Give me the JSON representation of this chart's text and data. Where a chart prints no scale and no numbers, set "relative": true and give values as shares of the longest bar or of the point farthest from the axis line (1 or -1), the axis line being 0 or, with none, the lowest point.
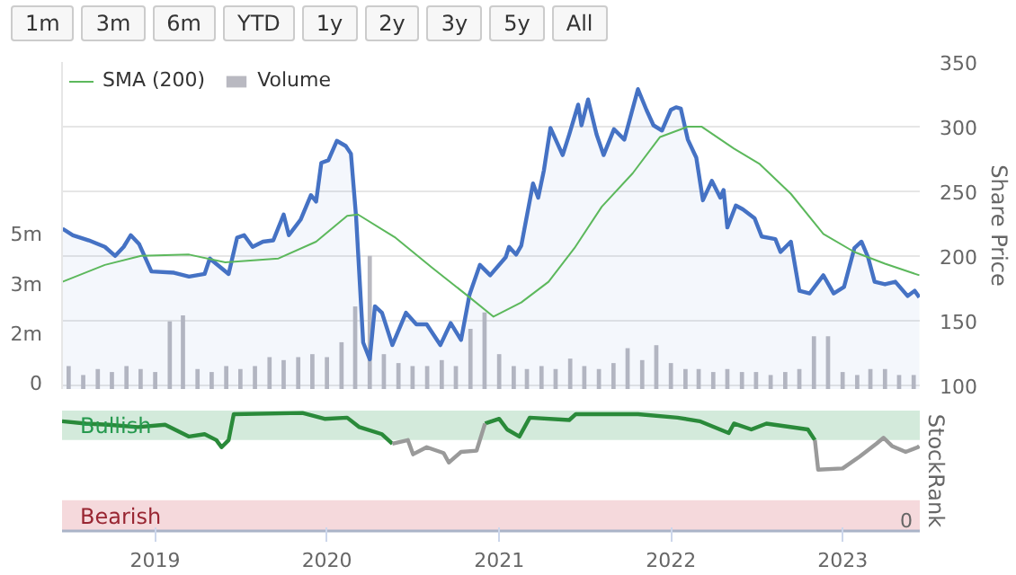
{
  "chart_data": [
    {
      "type": "line",
      "annotations": [
        "1m",
        "3m",
        "6m",
        "YTD",
        "1y",
        "2y",
        "3y",
        "5y",
        "All"
      ],
      "ylabel": "Share Price",
      "xlim": [
        "2018-06-17",
        "2023-06-14"
      ],
      "ylim": [
        97,
        350
      ],
      "yticks": [
        100,
        150,
        200,
        250,
        300,
        350
      ],
      "y2lim": [
        -170000,
        10800000
      ],
      "y2ticks": [
        0,
        {
          "value": 1666667,
          "label": "2m"
        },
        {
          "value": 3333333,
          "label": "3m"
        },
        {
          "value": 5000000,
          "label": "5m"
        }
      ],
      "tick_labels": "y",
      "grid": "y",
      "legend": "top left",
      "series": [
        {
          "type": "bar",
          "name": "Volume",
          "color": "#b9b9c1",
          "axis": "y2",
          "x": [
            "2018-07",
            "2018-08",
            "2018-09",
            "2018-10",
            "2018-11",
            "2018-12",
            "2019-01",
            "2019-02",
            "2019-03",
            "2019-04",
            "2019-05",
            "2019-06",
            "2019-07",
            "2019-08",
            "2019-09",
            "2019-10",
            "2019-11",
            "2019-12",
            "2020-01",
            "2020-02",
            "2020-03",
            "2020-04",
            "2020-05",
            "2020-06",
            "2020-07",
            "2020-08",
            "2020-09",
            "2020-10",
            "2020-11",
            "2020-12",
            "2021-01",
            "2021-02",
            "2021-03",
            "2021-04",
            "2021-05",
            "2021-06",
            "2021-07",
            "2021-08",
            "2021-09",
            "2021-10",
            "2021-11",
            "2021-12",
            "2022-01",
            "2022-02",
            "2022-03",
            "2022-04",
            "2022-05",
            "2022-06",
            "2022-07",
            "2022-08",
            "2022-09",
            "2022-10",
            "2022-11",
            "2022-12",
            "2023-01",
            "2023-02",
            "2023-03",
            "2023-04",
            "2023-05",
            "2023-06"
          ],
          "values": [
            600000,
            300000,
            500000,
            400000,
            600000,
            500000,
            400000,
            2100000,
            2300000,
            500000,
            400000,
            600000,
            500000,
            600000,
            900000,
            800000,
            900000,
            1000000,
            900000,
            1400000,
            2600000,
            4300000,
            1000000,
            700000,
            600000,
            600000,
            800000,
            600000,
            1850000,
            2400000,
            1000000,
            600000,
            500000,
            600000,
            500000,
            850000,
            600000,
            500000,
            700000,
            1200000,
            800000,
            1300000,
            700000,
            500000,
            500000,
            400000,
            500000,
            400000,
            400000,
            300000,
            400000,
            500000,
            1600000,
            1600000,
            400000,
            300000,
            500000,
            500000,
            300000,
            300000
          ]
        },
        {
          "type": "area",
          "color": "#4572c4",
          "x": [
            "2018-06-18",
            "2018-07-10",
            "2018-08-13",
            "2018-09-16",
            "2018-10-08",
            "2018-10-26",
            "2018-11-10",
            "2018-11-28",
            "2018-12-24",
            "2019-02-10",
            "2019-03-14",
            "2019-04-16",
            "2019-04-27",
            "2019-06-06",
            "2019-06-24",
            "2019-07-09",
            "2019-07-27",
            "2019-08-18",
            "2019-09-09",
            "2019-10-01",
            "2019-10-12",
            "2019-11-06",
            "2019-11-28",
            "2019-12-09",
            "2019-12-20",
            "2020-01-04",
            "2020-01-22",
            "2020-02-10",
            "2020-02-21",
            "2020-03-03",
            "2020-03-18",
            "2020-04-01",
            "2020-04-12",
            "2020-04-27",
            "2020-05-19",
            "2020-06-17",
            "2020-07-09",
            "2020-07-31",
            "2020-08-29",
            "2020-09-20",
            "2020-10-12",
            "2020-10-30",
            "2020-11-21",
            "2020-12-13",
            "2021-01-15",
            "2021-01-22",
            "2021-02-06",
            "2021-02-17",
            "2021-03-14",
            "2021-03-25",
            "2021-04-06",
            "2021-04-20",
            "2021-05-16",
            "2021-05-30",
            "2021-06-18",
            "2021-06-25",
            "2021-07-09",
            "2021-07-27",
            "2021-08-11",
            "2021-09-02",
            "2021-09-24",
            "2021-10-23",
            "2021-11-10",
            "2021-11-25",
            "2021-12-13",
            "2022-01-01",
            "2022-01-12",
            "2022-01-22",
            "2022-02-06",
            "2022-02-24",
            "2022-03-10",
            "2022-03-29",
            "2022-04-16",
            "2022-04-23",
            "2022-05-01",
            "2022-05-19",
            "2022-06-03",
            "2022-06-28",
            "2022-07-13",
            "2022-08-11",
            "2022-08-22",
            "2022-09-13",
            "2022-10-01",
            "2022-10-23",
            "2022-11-21",
            "2022-12-13",
            "2023-01-04",
            "2023-01-26",
            "2023-02-10",
            "2023-02-24",
            "2023-03-10",
            "2023-04-01",
            "2023-04-23",
            "2023-05-19",
            "2023-06-03",
            "2023-06-13"
          ],
          "values": [
            221,
            216,
            212,
            207,
            200,
            207,
            216,
            209,
            188,
            187,
            184,
            186,
            198,
            186,
            214,
            216,
            207,
            211,
            212,
            232,
            216,
            228,
            247,
            242,
            272,
            274,
            289,
            285,
            279,
            230,
            133,
            120,
            161,
            156,
            131,
            156,
            147,
            147,
            131,
            148,
            135,
            170,
            193,
            185,
            199,
            207,
            201,
            208,
            256,
            245,
            266,
            299,
            278,
            294,
            317,
            301,
            321,
            294,
            278,
            298,
            290,
            329,
            313,
            301,
            297,
            313,
            315,
            314,
            290,
            276,
            243,
            258,
            245,
            251,
            222,
            239,
            236,
            229,
            215,
            213,
            203,
            211,
            173,
            171,
            185,
            171,
            176,
            206,
            211,
            199,
            180,
            178,
            180,
            169,
            173,
            168
          ]
        },
        {
          "type": "line",
          "name": "SMA (200)",
          "color": "#5cb85c",
          "x": [
            "2018-06-18",
            "2018-09-16",
            "2018-12-02",
            "2019-03-14",
            "2019-05-30",
            "2019-09-20",
            "2019-12-09",
            "2020-02-13",
            "2020-03-07",
            "2020-05-26",
            "2020-08-11",
            "2020-10-30",
            "2020-12-20",
            "2021-02-17",
            "2021-04-16",
            "2021-06-10",
            "2021-08-07",
            "2021-10-12",
            "2021-12-09",
            "2022-02-06",
            "2022-03-07",
            "2022-05-15",
            "2022-07-09",
            "2022-09-13",
            "2022-11-21",
            "2023-01-26",
            "2023-04-01",
            "2023-06-13"
          ],
          "values": [
            180,
            193,
            200,
            201,
            195,
            198,
            211,
            231,
            232,
            214,
            191,
            168,
            153,
            164,
            180,
            206,
            238,
            264,
            292,
            300,
            300,
            283,
            271,
            248,
            217,
            203,
            194,
            185
          ]
        }
      ]
    },
    {
      "type": "line",
      "relative": true,
      "ylabel": "StockRank",
      "annotations": [
        "0"
      ],
      "xlim": [
        "2018-06-17",
        "2023-06-14"
      ],
      "xticks": [
        "2019",
        "2020",
        "2021",
        "2022",
        "2023"
      ],
      "bands": [
        {
          "axis": "y",
          "from": 0.77,
          "to": 1.02,
          "label": "Bullish",
          "color": "#d3eadb"
        },
        {
          "axis": "y",
          "from": 0,
          "to": 0.26,
          "label": "Bearish",
          "color": "#f5d9dc"
        }
      ],
      "x": [
        "2018-06-17",
        "2018-08-07",
        "2018-09-23",
        "2018-11-25",
        "2019-01-22",
        "2019-03-14",
        "2019-04-16",
        "2019-05-11",
        "2019-05-22",
        "2019-06-06",
        "2019-06-17",
        "2019-11-10",
        "2019-12-27",
        "2020-02-13",
        "2020-03-10",
        "2020-04-27",
        "2020-05-19",
        "2020-06-21",
        "2020-07-02",
        "2020-07-31",
        "2020-09-05",
        "2020-09-16",
        "2020-10-12",
        "2020-11-14",
        "2020-12-02",
        "2021-01-01",
        "2021-01-18",
        "2021-02-13",
        "2021-03-07",
        "2021-05-30",
        "2021-06-13",
        "2021-10-23",
        "2022-01-15",
        "2022-03-03",
        "2022-05-04",
        "2022-05-15",
        "2022-06-21",
        "2022-07-23",
        "2022-10-19",
        "2022-11-03",
        "2022-11-10",
        "2023-01-01",
        "2023-02-06",
        "2023-03-14",
        "2023-03-29",
        "2023-04-16",
        "2023-05-15",
        "2023-06-10",
        "2023-06-13"
      ],
      "series": [
        {
          "color": "#2a8a3a",
          "values": [
            0.93,
            0.91,
            0.9,
            0.88,
            0.9,
            0.8,
            0.82,
            0.77,
            0.71,
            0.77,
            0.99,
            1,
            0.95,
            0.96,
            0.88,
            0.82,
            0.74,
            null,
            null,
            null,
            null,
            null,
            null,
            null,
            0.91,
            0.95,
            0.86,
            0.8,
            0.96,
            0.94,
            0.99,
            0.99,
            0.96,
            0.93,
            0.83,
            0.91,
            0.86,
            0.91,
            0.86,
            0.77,
            null,
            null,
            null,
            null,
            null,
            null,
            null,
            null,
            null
          ]
        },
        {
          "color": "#9a9a9a",
          "values": [
            null,
            null,
            null,
            null,
            null,
            null,
            null,
            null,
            null,
            null,
            null,
            null,
            null,
            null,
            null,
            null,
            0.74,
            0.77,
            0.65,
            0.71,
            0.66,
            0.58,
            0.67,
            0.68,
            0.91,
            null,
            null,
            null,
            null,
            null,
            null,
            null,
            null,
            null,
            null,
            null,
            null,
            null,
            null,
            0.77,
            0.52,
            0.53,
            0.63,
            0.74,
            0.79,
            0.72,
            0.67,
            0.71,
            0.72
          ]
        }
      ]
    }
  ]
}
